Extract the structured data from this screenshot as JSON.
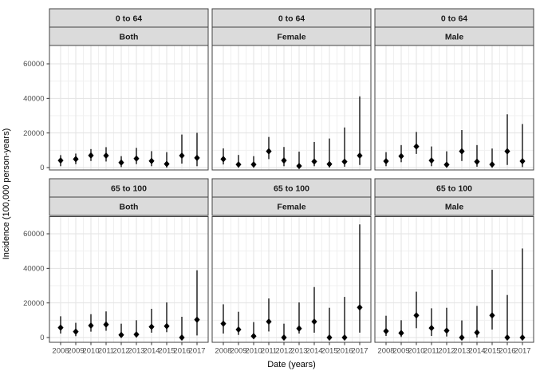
{
  "chart_data": {
    "type": "pointrange",
    "title": "",
    "xlabel": "Date (years)",
    "ylabel": "Incidence (100,000 person-years)",
    "x": [
      2008,
      2009,
      2010,
      2011,
      2012,
      2013,
      2014,
      2015,
      2016,
      2017
    ],
    "yticks": [
      0,
      20000,
      40000,
      60000
    ],
    "yticks_minor": [
      10000,
      30000,
      50000
    ],
    "ylim": [
      -3000,
      70000
    ],
    "grid": "major+minor",
    "legend": "none",
    "facet_rows": [
      "0 to 64",
      "65 to 100"
    ],
    "facet_cols": [
      "Both",
      "Female",
      "Male"
    ],
    "panels": [
      {
        "age": "0 to 64",
        "sex": "Both",
        "est": [
          4100,
          4900,
          7000,
          6900,
          2900,
          5200,
          3800,
          2100,
          6900,
          5600
        ],
        "lo": [
          800,
          2000,
          3800,
          3500,
          300,
          2000,
          800,
          0,
          2300,
          800
        ],
        "hi": [
          7200,
          8100,
          10700,
          11800,
          6600,
          11400,
          9500,
          8900,
          19100,
          20100
        ]
      },
      {
        "age": "0 to 64",
        "sex": "Female",
        "est": [
          4900,
          1800,
          1800,
          9400,
          4100,
          900,
          3500,
          2000,
          3400,
          6900
        ],
        "lo": [
          1800,
          0,
          0,
          4900,
          800,
          0,
          800,
          0,
          500,
          1500
        ],
        "hi": [
          11100,
          7300,
          6600,
          17700,
          11900,
          9200,
          14800,
          16800,
          23200,
          41200
        ]
      },
      {
        "age": "0 to 64",
        "sex": "Male",
        "est": [
          3700,
          6600,
          12200,
          4100,
          1700,
          9400,
          3400,
          1800,
          9400,
          3700
        ],
        "lo": [
          800,
          3100,
          7900,
          800,
          0,
          3800,
          500,
          0,
          1500,
          300
        ],
        "hi": [
          8900,
          13000,
          20600,
          12200,
          9400,
          21700,
          13000,
          11000,
          30800,
          25200
        ]
      },
      {
        "age": "65 to 100",
        "sex": "Both",
        "est": [
          5700,
          3400,
          6900,
          7500,
          1500,
          1800,
          6200,
          6600,
          0,
          10300
        ],
        "lo": [
          2300,
          800,
          3400,
          3900,
          0,
          0,
          2800,
          3100,
          0,
          1200
        ],
        "hi": [
          12300,
          8500,
          13500,
          15100,
          8000,
          10000,
          16600,
          20300,
          12000,
          38900
        ]
      },
      {
        "age": "65 to 100",
        "sex": "Female",
        "est": [
          8000,
          4600,
          800,
          9200,
          0,
          5200,
          9200,
          0,
          0,
          17400
        ],
        "lo": [
          2300,
          1500,
          0,
          3500,
          0,
          2300,
          2800,
          0,
          0,
          2800
        ],
        "hi": [
          19200,
          14900,
          8900,
          22600,
          8000,
          20300,
          29200,
          17200,
          23500,
          65400
        ]
      },
      {
        "age": "65 to 100",
        "sex": "Male",
        "est": [
          3700,
          2600,
          12800,
          5500,
          4000,
          0,
          2900,
          12800,
          0,
          0
        ],
        "lo": [
          900,
          300,
          5400,
          900,
          600,
          0,
          0,
          4600,
          0,
          0
        ],
        "hi": [
          12600,
          10000,
          26500,
          16900,
          17200,
          9900,
          18300,
          39200,
          24600,
          51500
        ]
      }
    ]
  },
  "colors": {
    "background": "#FFFFFF",
    "point": "#000000",
    "strip_fill": "#DBDBDB",
    "panel_border": "#424242",
    "strip_border": "#424242",
    "grid_major": "#E3E3E3",
    "grid_minor": "#F0F0F0",
    "tick_mark": "#333333",
    "tick_label": "#4D4D4D",
    "strip_text": "#1A1A1A",
    "axis_title": "#000000"
  }
}
